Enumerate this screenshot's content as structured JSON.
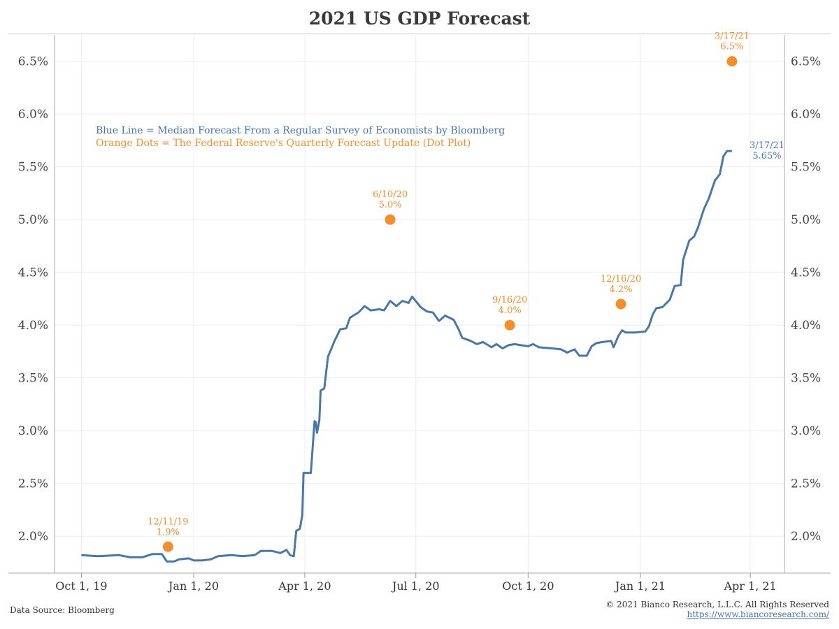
{
  "chart_data": {
    "type": "line",
    "title": "2021 US GDP Forecast",
    "xlabel": "",
    "ylabel": "",
    "ylim": [
      1.65,
      6.75
    ],
    "y_ticks": [
      "2.0%",
      "2.5%",
      "3.0%",
      "3.5%",
      "4.0%",
      "4.5%",
      "5.0%",
      "5.5%",
      "6.0%",
      "6.5%"
    ],
    "x_ticks": [
      {
        "date": "2019-10-01",
        "label": "Oct 1, 19"
      },
      {
        "date": "2020-01-01",
        "label": "Jan 1, 20"
      },
      {
        "date": "2020-04-01",
        "label": "Apr 1, 20"
      },
      {
        "date": "2020-07-01",
        "label": "Jul 1, 20"
      },
      {
        "date": "2020-10-01",
        "label": "Oct 1, 20"
      },
      {
        "date": "2021-01-01",
        "label": "Jan 1, 21"
      },
      {
        "date": "2021-04-01",
        "label": "Apr 1, 21"
      }
    ],
    "xlim": [
      "2019-09-09",
      "2021-04-29"
    ],
    "grid": true,
    "colors": {
      "line": "#4a76a8",
      "dots": "#f28e2b"
    },
    "legend_lines": [
      {
        "text": "Blue Line = Median Forecast From a Regular Survey of Economists by Bloomberg",
        "color": "#4a76a8"
      },
      {
        "text": "Orange Dots = The Federal Reserve's Quarterly Forecast Update (Dot Plot)",
        "color": "#f28e2b"
      }
    ],
    "series": [
      {
        "values": [
          [
            "2019-10-01",
            1.82
          ],
          [
            "2019-10-15",
            1.81
          ],
          [
            "2019-11-01",
            1.82
          ],
          [
            "2019-11-10",
            1.8
          ],
          [
            "2019-11-20",
            1.8
          ],
          [
            "2019-11-28",
            1.83
          ],
          [
            "2019-12-06",
            1.83
          ],
          [
            "2019-12-10",
            1.76
          ],
          [
            "2019-12-16",
            1.76
          ],
          [
            "2019-12-20",
            1.78
          ],
          [
            "2019-12-28",
            1.79
          ],
          [
            "2020-01-01",
            1.77
          ],
          [
            "2020-01-08",
            1.77
          ],
          [
            "2020-01-15",
            1.78
          ],
          [
            "2020-01-21",
            1.81
          ],
          [
            "2020-02-01",
            1.82
          ],
          [
            "2020-02-10",
            1.81
          ],
          [
            "2020-02-20",
            1.82
          ],
          [
            "2020-02-25",
            1.86
          ],
          [
            "2020-03-05",
            1.86
          ],
          [
            "2020-03-12",
            1.84
          ],
          [
            "2020-03-17",
            1.87
          ],
          [
            "2020-03-20",
            1.82
          ],
          [
            "2020-03-23",
            1.81
          ],
          [
            "2020-03-25",
            2.05
          ],
          [
            "2020-03-28",
            2.07
          ],
          [
            "2020-03-30",
            2.2
          ],
          [
            "2020-03-31",
            2.6
          ],
          [
            "2020-04-06",
            2.6
          ],
          [
            "2020-04-09",
            3.09
          ],
          [
            "2020-04-10",
            3.08
          ],
          [
            "2020-04-11",
            2.98
          ],
          [
            "2020-04-13",
            3.1
          ],
          [
            "2020-04-14",
            3.38
          ],
          [
            "2020-04-17",
            3.4
          ],
          [
            "2020-04-20",
            3.7
          ],
          [
            "2020-04-25",
            3.84
          ],
          [
            "2020-04-30",
            3.96
          ],
          [
            "2020-05-05",
            3.97
          ],
          [
            "2020-05-08",
            4.07
          ],
          [
            "2020-05-15",
            4.12
          ],
          [
            "2020-05-20",
            4.18
          ],
          [
            "2020-05-25",
            4.14
          ],
          [
            "2020-06-01",
            4.15
          ],
          [
            "2020-06-05",
            4.14
          ],
          [
            "2020-06-10",
            4.23
          ],
          [
            "2020-06-15",
            4.18
          ],
          [
            "2020-06-20",
            4.23
          ],
          [
            "2020-06-25",
            4.21
          ],
          [
            "2020-06-28",
            4.27
          ],
          [
            "2020-07-05",
            4.17
          ],
          [
            "2020-07-10",
            4.13
          ],
          [
            "2020-07-15",
            4.12
          ],
          [
            "2020-07-20",
            4.04
          ],
          [
            "2020-07-25",
            4.09
          ],
          [
            "2020-08-01",
            4.05
          ],
          [
            "2020-08-05",
            3.96
          ],
          [
            "2020-08-08",
            3.88
          ],
          [
            "2020-08-15",
            3.85
          ],
          [
            "2020-08-20",
            3.82
          ],
          [
            "2020-08-25",
            3.84
          ],
          [
            "2020-09-01",
            3.79
          ],
          [
            "2020-09-05",
            3.82
          ],
          [
            "2020-09-10",
            3.78
          ],
          [
            "2020-09-15",
            3.81
          ],
          [
            "2020-09-20",
            3.82
          ],
          [
            "2020-09-25",
            3.81
          ],
          [
            "2020-10-01",
            3.8
          ],
          [
            "2020-10-05",
            3.82
          ],
          [
            "2020-10-10",
            3.79
          ],
          [
            "2020-10-20",
            3.78
          ],
          [
            "2020-10-28",
            3.77
          ],
          [
            "2020-11-02",
            3.74
          ],
          [
            "2020-11-08",
            3.77
          ],
          [
            "2020-11-12",
            3.71
          ],
          [
            "2020-11-18",
            3.71
          ],
          [
            "2020-11-22",
            3.8
          ],
          [
            "2020-11-26",
            3.83
          ],
          [
            "2020-12-01",
            3.84
          ],
          [
            "2020-12-08",
            3.85
          ],
          [
            "2020-12-10",
            3.79
          ],
          [
            "2020-12-14",
            3.9
          ],
          [
            "2020-12-17",
            3.95
          ],
          [
            "2020-12-20",
            3.93
          ],
          [
            "2020-12-28",
            3.93
          ],
          [
            "2021-01-05",
            3.94
          ],
          [
            "2021-01-08",
            3.99
          ],
          [
            "2021-01-11",
            4.1
          ],
          [
            "2021-01-14",
            4.16
          ],
          [
            "2021-01-19",
            4.17
          ],
          [
            "2021-01-25",
            4.24
          ],
          [
            "2021-01-29",
            4.37
          ],
          [
            "2021-02-03",
            4.38
          ],
          [
            "2021-02-05",
            4.62
          ],
          [
            "2021-02-10",
            4.8
          ],
          [
            "2021-02-14",
            4.84
          ],
          [
            "2021-02-17",
            4.92
          ],
          [
            "2021-02-22",
            5.1
          ],
          [
            "2021-02-26",
            5.2
          ],
          [
            "2021-03-03",
            5.37
          ],
          [
            "2021-03-07",
            5.43
          ],
          [
            "2021-03-10",
            5.6
          ],
          [
            "2021-03-13",
            5.65
          ],
          [
            "2021-03-17",
            5.65
          ]
        ]
      }
    ],
    "fed_dots": [
      {
        "date": "2019-12-11",
        "value": 1.9,
        "label_date": "12/11/19",
        "label_value": "1.9%"
      },
      {
        "date": "2020-06-10",
        "value": 5.0,
        "label_date": "6/10/20",
        "label_value": "5.0%"
      },
      {
        "date": "2020-09-16",
        "value": 4.0,
        "label_date": "9/16/20",
        "label_value": "4.0%"
      },
      {
        "date": "2020-12-16",
        "value": 4.2,
        "label_date": "12/16/20",
        "label_value": "4.2%"
      },
      {
        "date": "2021-03-17",
        "value": 6.5,
        "label_date": "3/17/21",
        "label_value": "6.5%"
      }
    ],
    "line_end_label": {
      "date": "3/17/21",
      "value": "5.65%"
    }
  },
  "footer": {
    "source": "Data Source: Bloomberg",
    "copyright": "© 2021 Bianco Research, L.L.C. All Rights Reserved",
    "url": "https://www.biancoresearch.com/"
  }
}
